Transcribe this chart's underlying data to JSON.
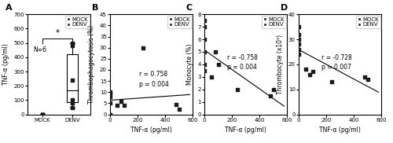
{
  "panel_A": {
    "mock_values": [
      0,
      0,
      0,
      0,
      0,
      0
    ],
    "denv_values": [
      50,
      80,
      100,
      240,
      480,
      500
    ],
    "ylabel": "TNF-α (pg/ml)",
    "ylim": [
      0,
      700
    ],
    "yticks": [
      0,
      100,
      200,
      300,
      400,
      500,
      600,
      700
    ],
    "n_label": "N=6",
    "sig_label": "*"
  },
  "panel_B": {
    "mock_x": [
      0,
      0,
      0,
      0,
      0,
      0
    ],
    "mock_y": [
      0,
      5,
      8,
      9,
      10,
      0
    ],
    "denv_x": [
      50,
      100,
      240,
      480,
      500,
      80
    ],
    "denv_y": [
      4,
      4,
      30,
      4.5,
      2.5,
      6
    ],
    "r_val": "r = 0.758",
    "p_val": "p = 0.004",
    "xlabel": "TNF-α (pg/ml)",
    "ylabel": "Thrombophagocytosis (%)",
    "xlim": [
      0,
      600
    ],
    "ylim": [
      0,
      45
    ],
    "yticks": [
      0,
      5,
      10,
      15,
      20,
      25,
      30,
      35,
      40,
      45
    ],
    "xticks": [
      0,
      200,
      400,
      600
    ],
    "reg_x0": 0,
    "reg_x1": 580
  },
  "panel_C": {
    "mock_x": [
      0,
      0,
      0,
      0,
      0,
      0
    ],
    "mock_y": [
      3.5,
      5,
      6,
      7,
      7.5,
      4
    ],
    "denv_x": [
      50,
      100,
      240,
      480,
      500,
      80
    ],
    "denv_y": [
      3,
      4,
      2,
      1.5,
      2,
      5
    ],
    "r_val": "r = -0.758",
    "p_val": "p = 0.004",
    "xlabel": "TNF-α (pg/ml)",
    "ylabel": "Monocyte (%)",
    "xlim": [
      0,
      600
    ],
    "ylim": [
      0,
      8
    ],
    "yticks": [
      0,
      1,
      2,
      3,
      4,
      5,
      6,
      7,
      8
    ],
    "xticks": [
      0,
      200,
      400,
      600
    ],
    "reg_x0": 0,
    "reg_x1": 580
  },
  "panel_D": {
    "mock_x": [
      0,
      0,
      0,
      0,
      0,
      0
    ],
    "mock_y": [
      24,
      26,
      28,
      30,
      32,
      35
    ],
    "denv_x": [
      50,
      100,
      240,
      480,
      500,
      80
    ],
    "denv_y": [
      18,
      17,
      13,
      15,
      14,
      16
    ],
    "r_val": "r = -0.728",
    "p_val": "p = 0.007",
    "xlabel": "TNF-α (pg/ml)",
    "ylabel": "Thrombocyte (x10³)",
    "xlim": [
      0,
      600
    ],
    "ylim": [
      0,
      40
    ],
    "yticks": [
      0,
      10,
      20,
      30,
      40
    ],
    "xticks": [
      0,
      200,
      400,
      600
    ],
    "reg_x0": 0,
    "reg_x1": 580
  },
  "mock_color": "#1a1a1a",
  "denv_color": "#1a1a1a",
  "marker_size": 12,
  "font_size": 5.5,
  "label_fontsize": 5.5,
  "tick_fontsize": 5
}
